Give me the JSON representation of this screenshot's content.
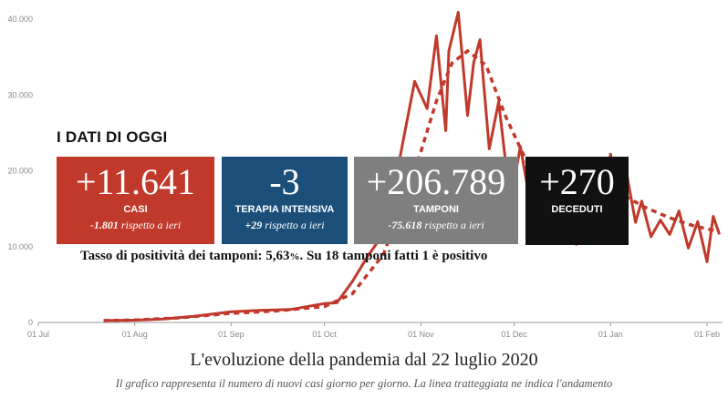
{
  "colors": {
    "line": "#c0392b",
    "casi_box": "#c0392b",
    "terapia_box": "#1b4f7a",
    "tamponi_box": "#7f7f7f",
    "deceduti_box": "#111111",
    "axis": "#999999"
  },
  "heading": "I DATI DI OGGI",
  "boxes": {
    "casi": {
      "sign": "+",
      "value": "11.641",
      "label": "CASI",
      "delta": "-1.801",
      "delta_suffix": " rispetto a ieri"
    },
    "terapia": {
      "sign": "",
      "value": "-3",
      "label": "TERAPIA INTENSIVA",
      "delta": "+29",
      "delta_suffix": " rispetto a ieri"
    },
    "tamponi": {
      "sign": "+",
      "value": "206.789",
      "label": "TAMPONI",
      "delta": "-75.618",
      "delta_suffix": " rispetto a ieri"
    },
    "deceduti": {
      "sign": "+",
      "value": "270",
      "label": "DECEDUTI"
    }
  },
  "positivity": {
    "prefix": "Tasso di positività dei tamponi: 5,63",
    "pct": "%",
    "suffix": ". Su 18 tamponi fatti 1 è positivo"
  },
  "title": "L'evoluzione della pandemia dal 22 luglio 2020",
  "subtitle": "Il grafico rappresenta il numero di nuovi casi giorno per giorno. La linea tratteggiata ne indica l'andamento",
  "chart_data": {
    "type": "line",
    "x_ticks": [
      "01 Jul",
      "01 Aug",
      "01 Sep",
      "01 Oct",
      "01 Nov",
      "01 Dec",
      "01 Jan",
      "01 Feb"
    ],
    "y_ticks": [
      "0",
      "10.000",
      "20.000",
      "30.000",
      "40.000"
    ],
    "ylim": [
      0,
      42000
    ],
    "grid": false,
    "series": [
      {
        "style": "solid",
        "x": [
          "2020-07-22",
          "2020-08-01",
          "2020-08-10",
          "2020-08-20",
          "2020-09-01",
          "2020-09-10",
          "2020-09-20",
          "2020-10-01",
          "2020-10-05",
          "2020-10-10",
          "2020-10-15",
          "2020-10-20",
          "2020-10-25",
          "2020-10-30",
          "2020-11-03",
          "2020-11-06",
          "2020-11-09",
          "2020-11-10",
          "2020-11-13",
          "2020-11-16",
          "2020-11-18",
          "2020-11-20",
          "2020-11-23",
          "2020-11-26",
          "2020-11-28",
          "2020-11-30",
          "2020-12-03",
          "2020-12-07",
          "2020-12-10",
          "2020-12-14",
          "2020-12-18",
          "2020-12-21",
          "2020-12-24",
          "2020-12-28",
          "2020-12-30",
          "2021-01-01",
          "2021-01-03",
          "2021-01-06",
          "2021-01-09",
          "2021-01-11",
          "2021-01-14",
          "2021-01-17",
          "2021-01-20",
          "2021-01-23",
          "2021-01-26",
          "2021-01-29",
          "2021-02-01",
          "2021-02-03",
          "2021-02-05"
        ],
        "values": [
          250,
          300,
          450,
          800,
          1400,
          1600,
          1700,
          2500,
          2600,
          5400,
          8800,
          11700,
          21200,
          31800,
          28200,
          37800,
          25300,
          35800,
          40900,
          27300,
          34300,
          37300,
          22900,
          29100,
          22000,
          16400,
          23200,
          13800,
          16900,
          15000,
          17500,
          10300,
          19000,
          12000,
          16000,
          22200,
          14800,
          20000,
          13200,
          16000,
          11300,
          13500,
          11600,
          14700,
          9800,
          13300,
          8000,
          14000,
          11600
        ]
      },
      {
        "style": "dashed",
        "x": [
          "2020-07-22",
          "2020-08-01",
          "2020-08-15",
          "2020-09-01",
          "2020-09-15",
          "2020-10-01",
          "2020-10-10",
          "2020-10-20",
          "2020-10-27",
          "2020-11-01",
          "2020-11-06",
          "2020-11-11",
          "2020-11-16",
          "2020-11-22",
          "2020-11-28",
          "2020-12-05",
          "2020-12-12",
          "2020-12-20",
          "2020-12-27",
          "2021-01-05",
          "2021-01-12",
          "2021-01-20",
          "2021-01-28",
          "2021-02-05"
        ],
        "values": [
          250,
          320,
          600,
          1200,
          1500,
          2100,
          3800,
          9000,
          16600,
          22500,
          29200,
          34200,
          35800,
          33900,
          27400,
          21200,
          17200,
          16200,
          15200,
          16800,
          15200,
          13800,
          12700,
          12000
        ]
      }
    ]
  }
}
